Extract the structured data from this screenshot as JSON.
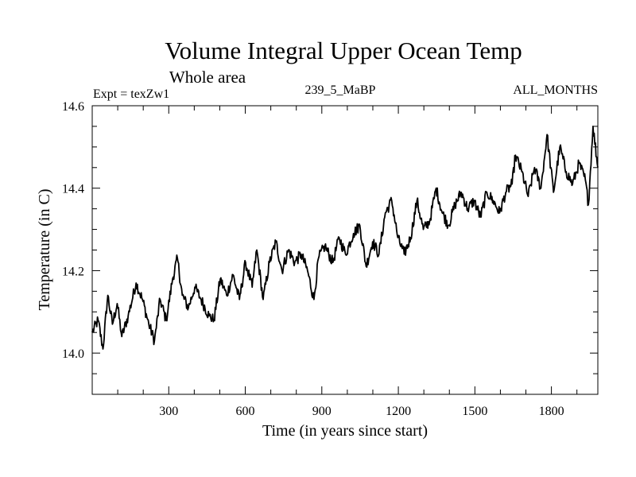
{
  "chart_data": {
    "type": "line",
    "title": "Volume Integral Upper Ocean Temp",
    "subtitle": "Whole area",
    "annotations": {
      "left": "Expt = texZw1",
      "center": "239_5_MaBP",
      "right": "ALL_MONTHS"
    },
    "xlabel": "Time (in years since start)",
    "ylabel": "Temperature (in C)",
    "xlim": [
      0,
      1982
    ],
    "ylim": [
      13.9,
      14.6
    ],
    "xticks": [
      300,
      600,
      900,
      1200,
      1500,
      1800
    ],
    "xtick_labels": [
      "300",
      "600",
      "900",
      "1200",
      "1500",
      "1800"
    ],
    "x_minor_step": 100,
    "yticks": [
      14.0,
      14.2,
      14.4,
      14.6
    ],
    "ytick_labels": [
      "14.0",
      "14.2",
      "14.4",
      "14.6"
    ],
    "y_minor_step": 0.05,
    "grid": false,
    "legend": "none",
    "series": [
      {
        "name": "Volume integral upper ocean temperature",
        "color": "#000000",
        "x": [
          0,
          23,
          42,
          61,
          79,
          98,
          116,
          141,
          172,
          197,
          222,
          244,
          266,
          290,
          315,
          334,
          353,
          377,
          402,
          427,
          458,
          477,
          502,
          527,
          552,
          577,
          601,
          627,
          645,
          670,
          695,
          720,
          744,
          769,
          794,
          819,
          844,
          869,
          887,
          912,
          943,
          968,
          993,
          1024,
          1049,
          1074,
          1099,
          1124,
          1149,
          1174,
          1198,
          1223,
          1248,
          1273,
          1298,
          1323,
          1348,
          1372,
          1397,
          1422,
          1447,
          1472,
          1497,
          1522,
          1547,
          1572,
          1597,
          1621,
          1646,
          1659,
          1684,
          1709,
          1734,
          1759,
          1783,
          1808,
          1833,
          1858,
          1883,
          1908,
          1933,
          1945,
          1963,
          1982
        ],
        "y": [
          14.05,
          14.08,
          14.01,
          14.14,
          14.07,
          14.12,
          14.04,
          14.09,
          14.17,
          14.13,
          14.07,
          14.03,
          14.13,
          14.08,
          14.18,
          14.23,
          14.14,
          14.11,
          14.16,
          14.13,
          14.09,
          14.08,
          14.18,
          14.14,
          14.19,
          14.13,
          14.22,
          14.16,
          14.25,
          14.13,
          14.22,
          14.27,
          14.2,
          14.25,
          14.22,
          14.24,
          14.2,
          14.13,
          14.23,
          14.26,
          14.22,
          14.28,
          14.24,
          14.29,
          14.31,
          14.21,
          14.27,
          14.24,
          14.34,
          14.37,
          14.28,
          14.24,
          14.28,
          14.37,
          14.3,
          14.32,
          14.4,
          14.34,
          14.31,
          14.36,
          14.39,
          14.35,
          14.37,
          14.33,
          14.39,
          14.37,
          14.34,
          14.39,
          14.41,
          14.48,
          14.44,
          14.38,
          14.45,
          14.4,
          14.53,
          14.39,
          14.5,
          14.44,
          14.41,
          14.46,
          14.42,
          14.36,
          14.55,
          14.45
        ]
      }
    ]
  }
}
